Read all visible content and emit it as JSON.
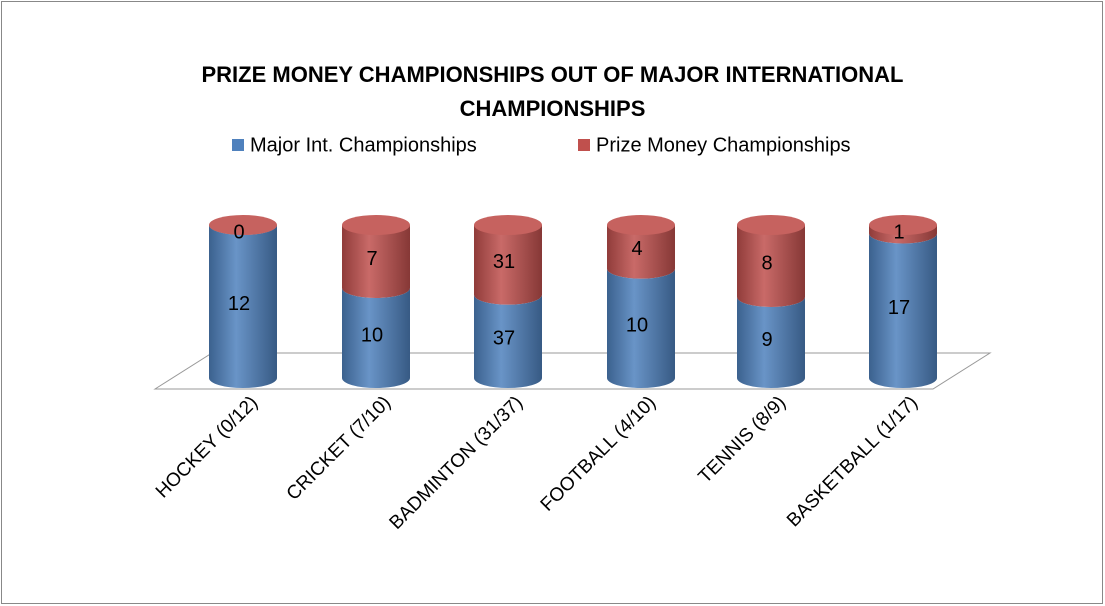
{
  "chart_data": {
    "type": "bar",
    "stacking": "percent",
    "title": "PRIZE MONEY CHAMPIONSHIPS OUT OF MAJOR INTERNATIONAL CHAMPIONSHIPS",
    "categories": [
      "HOCKEY (0/12)",
      "CRICKET (7/10)",
      "BADMINTON (31/37)",
      "FOOTBALL (4/10)",
      "TENNIS (8/9)",
      "BASKETBALL (1/17)"
    ],
    "series": [
      {
        "name": "Major Int. Championships",
        "color": "#4f81bd",
        "values": [
          12,
          10,
          37,
          10,
          9,
          17
        ]
      },
      {
        "name": "Prize Money Championships",
        "color": "#c0504d",
        "values": [
          0,
          7,
          31,
          4,
          8,
          1
        ]
      }
    ]
  }
}
